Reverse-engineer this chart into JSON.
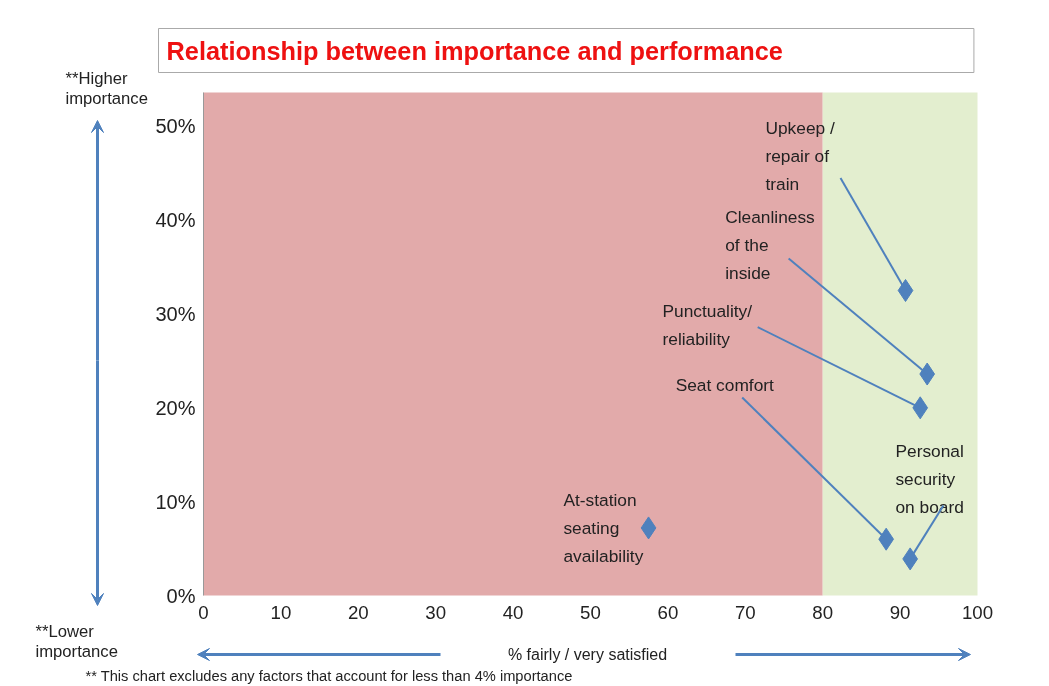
{
  "chart_data": {
    "type": "scatter",
    "title": "Relationship between importance and performance",
    "xlabel": "% fairly / very satisfied",
    "x": [
      90.7,
      93.5,
      92.6,
      88.2,
      91.3,
      57.5
    ],
    "values": [
      32.5,
      23.6,
      20.0,
      6.0,
      3.9,
      7.2
    ],
    "color": "#4f81bd",
    "marker": "diamond",
    "xlim": [
      0,
      100
    ],
    "xticks": [
      0,
      10,
      20,
      30,
      40,
      50,
      60,
      70,
      80,
      90,
      100
    ],
    "ylim": [
      0,
      53.6
    ],
    "yticks": [
      {
        "value": 0,
        "label": "0%"
      },
      {
        "value": 10,
        "label": "10%"
      },
      {
        "value": 20,
        "label": "20%"
      },
      {
        "value": 30,
        "label": "30%"
      },
      {
        "value": 40,
        "label": "40%"
      },
      {
        "value": 50,
        "label": "50%"
      }
    ],
    "bands": [
      {
        "axis": "x",
        "from": 0,
        "to": 80,
        "label": null,
        "color": "#e2aaaa"
      },
      {
        "axis": "x",
        "from": 80,
        "to": 100,
        "label": null,
        "color": "#e3eecf"
      }
    ],
    "annotations": [
      {
        "text": "Upkeep / repair of train",
        "x": 90.7,
        "y": 32.5
      },
      {
        "text": "Cleanliness of the inside",
        "x": 93.5,
        "y": 23.6
      },
      {
        "text": "Punctuality/ reliability",
        "x": 92.6,
        "y": 20.0
      },
      {
        "text": "Seat comfort",
        "x": 88.2,
        "y": 6.0
      },
      {
        "text": "Personal security on board",
        "x": 91.3,
        "y": 3.9
      },
      {
        "text": "At-station seating availability",
        "x": 57.5,
        "y": 7.2
      },
      "**Higher importance",
      "**Lower importance",
      "** This chart excludes any factors that account for less than 4% importance"
    ],
    "grid": false
  }
}
